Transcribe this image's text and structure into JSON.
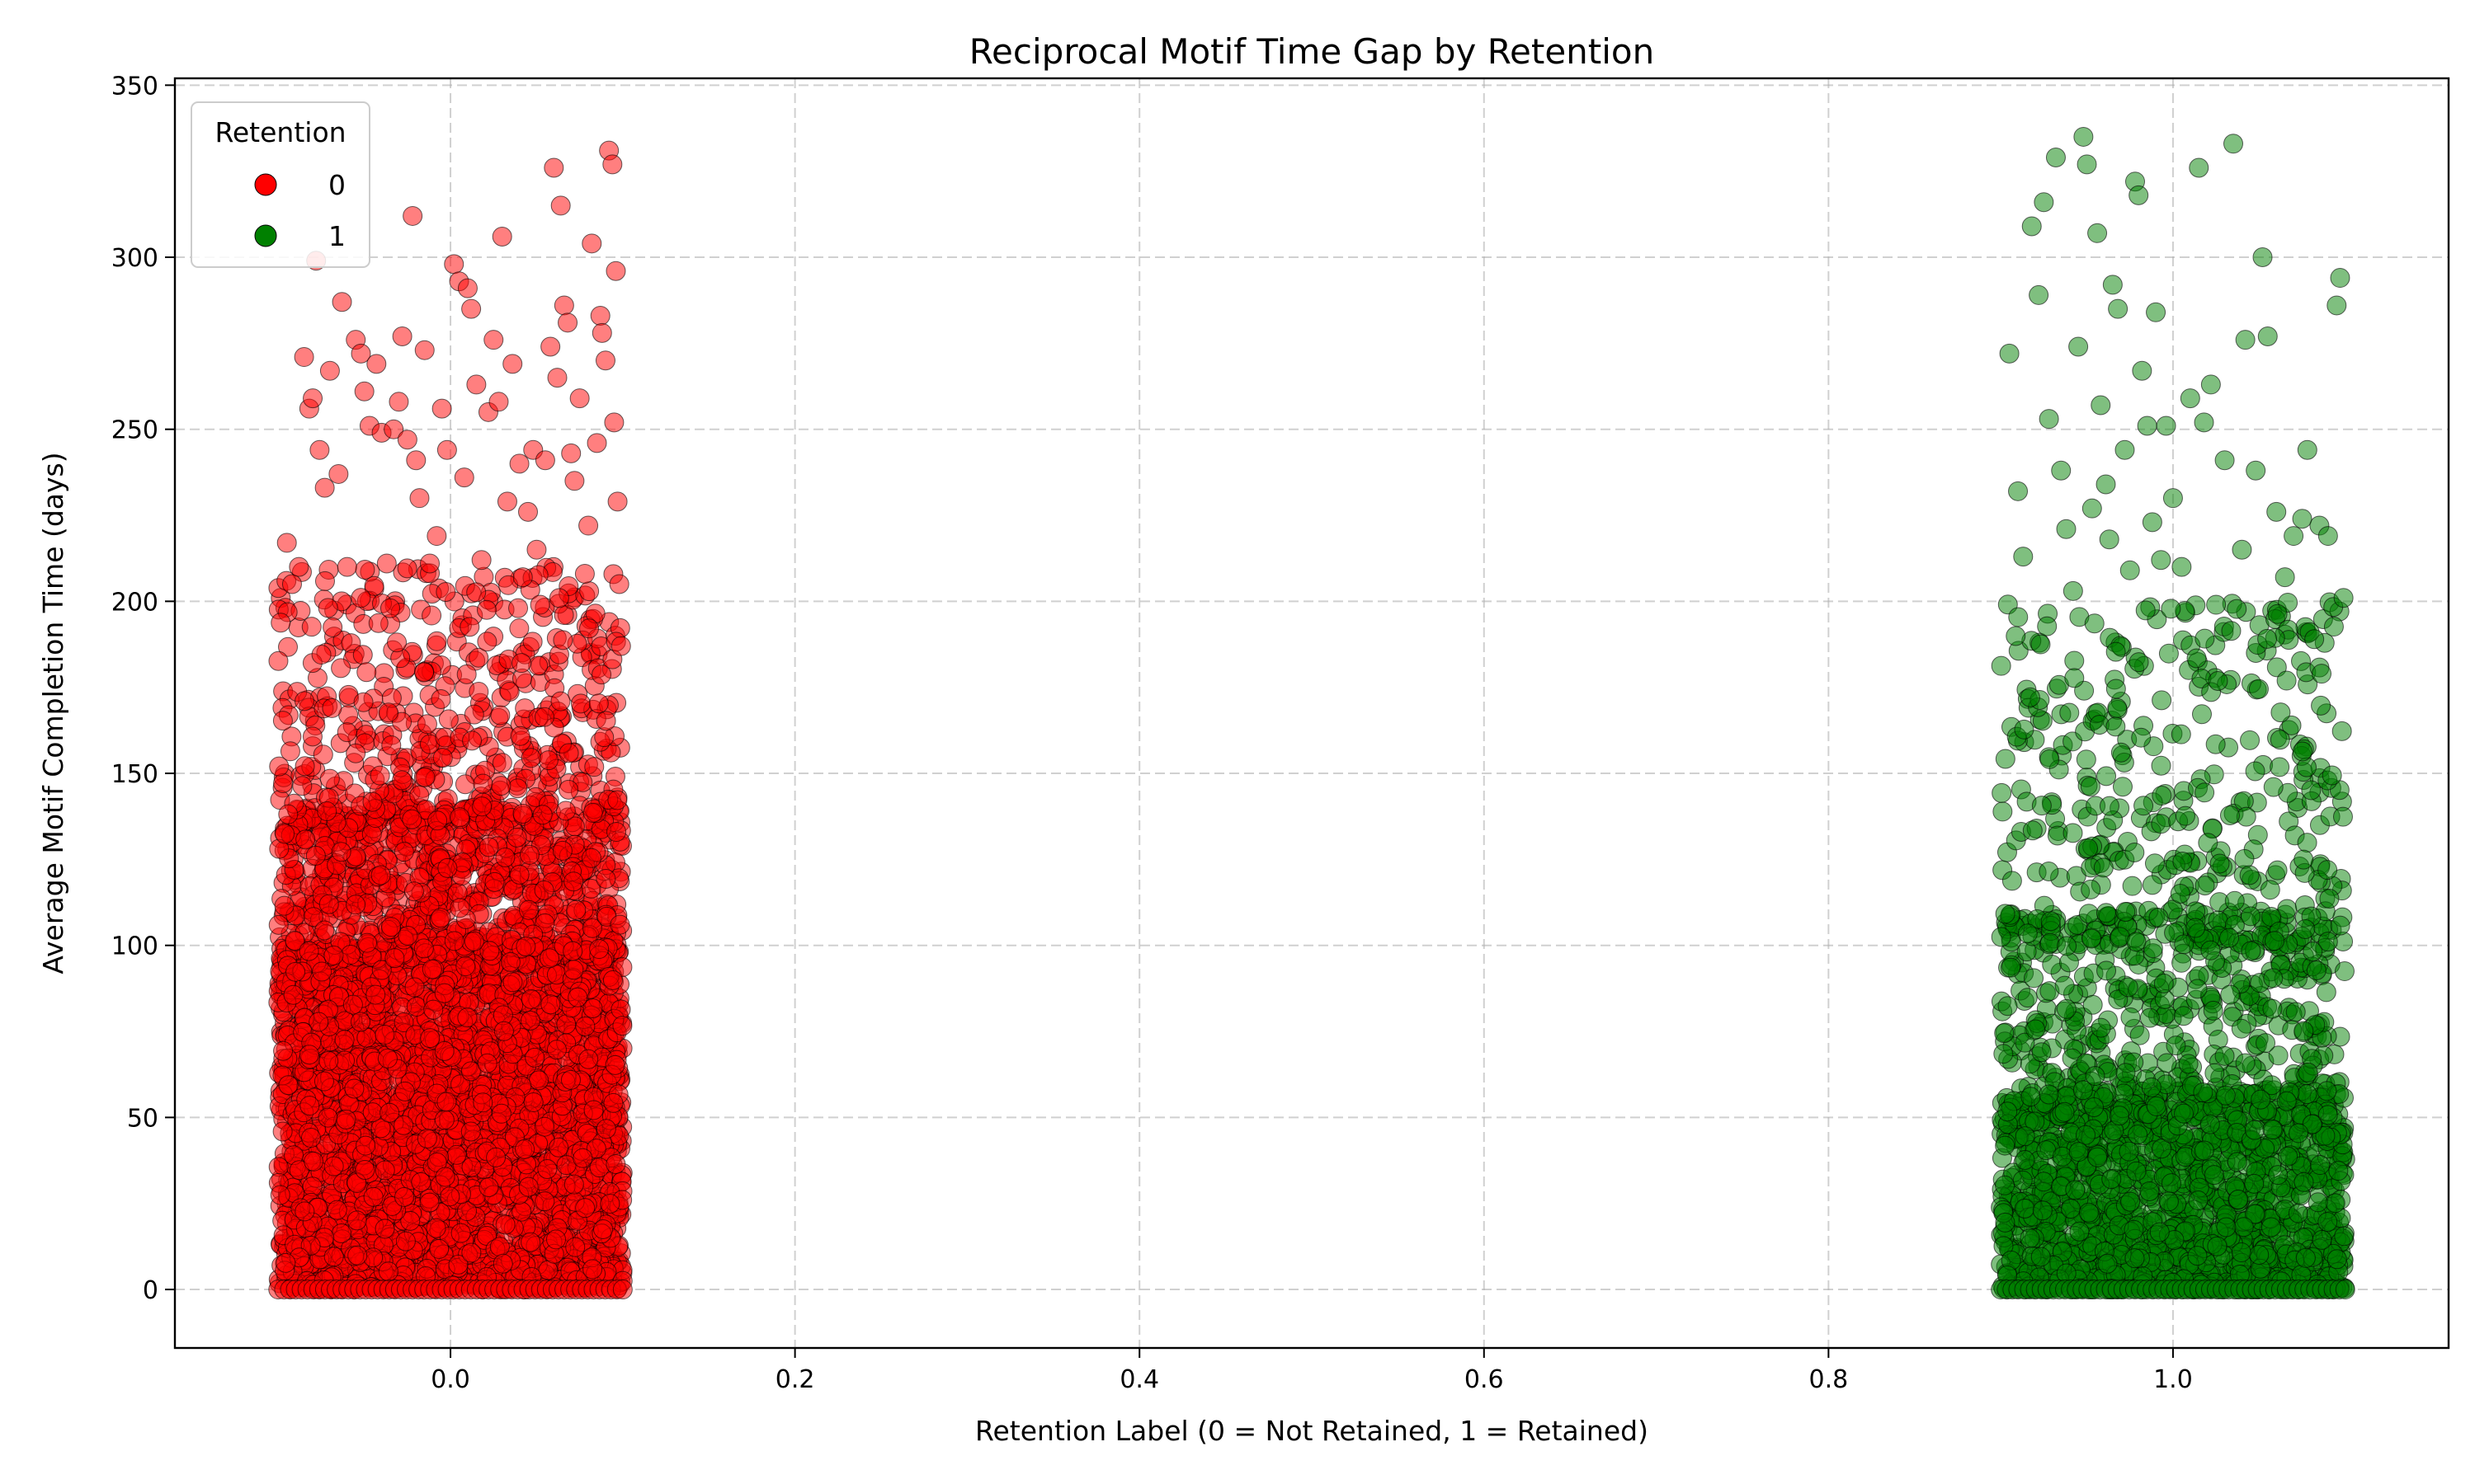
{
  "chart_data": {
    "type": "scatter",
    "title": "Reciprocal Motif Time Gap by Retention",
    "xlabel": "Retention Label (0 = Not Retained, 1 = Retained)",
    "ylabel": "Average Motif Completion Time (days)",
    "xlim": [
      -0.16,
      1.16
    ],
    "ylim": [
      -17,
      352
    ],
    "xticks": [
      0.0,
      0.2,
      0.4,
      0.6,
      0.8,
      1.0
    ],
    "xtick_labels": [
      "0.0",
      "0.2",
      "0.4",
      "0.6",
      "0.8",
      "1.0"
    ],
    "yticks": [
      0,
      50,
      100,
      150,
      200,
      250,
      300,
      350
    ],
    "ytick_labels": [
      "0",
      "50",
      "100",
      "150",
      "200",
      "250",
      "300",
      "350"
    ],
    "grid": true,
    "jitter": 0.1,
    "legend": {
      "title": "Retention",
      "placement": "top-left"
    },
    "series": [
      {
        "name": "0",
        "label_value": 0,
        "color": "#ff0000",
        "points": [
          [
            -0.095,
            217
          ],
          [
            -0.092,
            205
          ],
          [
            -0.088,
            210
          ],
          [
            -0.085,
            271
          ],
          [
            -0.082,
            256
          ],
          [
            -0.08,
            259
          ],
          [
            -0.078,
            299
          ],
          [
            -0.076,
            244
          ],
          [
            -0.073,
            233
          ],
          [
            -0.07,
            267
          ],
          [
            -0.065,
            237
          ],
          [
            -0.063,
            287
          ],
          [
            -0.06,
            210
          ],
          [
            -0.055,
            276
          ],
          [
            -0.052,
            272
          ],
          [
            -0.05,
            261
          ],
          [
            -0.047,
            251
          ],
          [
            -0.043,
            269
          ],
          [
            -0.04,
            249
          ],
          [
            -0.037,
            211
          ],
          [
            -0.035,
            198
          ],
          [
            -0.033,
            250
          ],
          [
            -0.03,
            258
          ],
          [
            -0.028,
            277
          ],
          [
            -0.025,
            247
          ],
          [
            -0.022,
            312
          ],
          [
            -0.02,
            241
          ],
          [
            -0.018,
            230
          ],
          [
            -0.015,
            273
          ],
          [
            -0.012,
            211
          ],
          [
            -0.008,
            219
          ],
          [
            -0.005,
            256
          ],
          [
            -0.002,
            244
          ],
          [
            0.002,
            298
          ],
          [
            0.005,
            293
          ],
          [
            0.008,
            236
          ],
          [
            0.01,
            291
          ],
          [
            0.012,
            285
          ],
          [
            0.015,
            263
          ],
          [
            0.018,
            212
          ],
          [
            0.022,
            255
          ],
          [
            0.025,
            276
          ],
          [
            0.028,
            258
          ],
          [
            0.03,
            306
          ],
          [
            0.033,
            229
          ],
          [
            0.036,
            269
          ],
          [
            0.04,
            240
          ],
          [
            0.042,
            207
          ],
          [
            0.045,
            226
          ],
          [
            0.048,
            244
          ],
          [
            0.05,
            215
          ],
          [
            0.052,
            199
          ],
          [
            0.055,
            241
          ],
          [
            0.058,
            274
          ],
          [
            0.06,
            326
          ],
          [
            0.062,
            265
          ],
          [
            0.064,
            315
          ],
          [
            0.066,
            286
          ],
          [
            0.068,
            281
          ],
          [
            0.07,
            243
          ],
          [
            0.072,
            235
          ],
          [
            0.075,
            259
          ],
          [
            0.078,
            208
          ],
          [
            0.08,
            222
          ],
          [
            0.082,
            304
          ],
          [
            0.085,
            246
          ],
          [
            0.087,
            283
          ],
          [
            0.088,
            278
          ],
          [
            0.09,
            270
          ],
          [
            0.092,
            331
          ],
          [
            0.094,
            327
          ],
          [
            0.095,
            252
          ],
          [
            0.096,
            296
          ],
          [
            0.097,
            229
          ],
          [
            0.098,
            205
          ],
          [
            0.099,
            187
          ]
        ]
      },
      {
        "name": "1",
        "label_value": 1,
        "color": "#008000",
        "points": [
          [
            0.905,
            272
          ],
          [
            0.91,
            232
          ],
          [
            0.913,
            213
          ],
          [
            0.918,
            309
          ],
          [
            0.922,
            289
          ],
          [
            0.925,
            316
          ],
          [
            0.928,
            253
          ],
          [
            0.932,
            329
          ],
          [
            0.935,
            238
          ],
          [
            0.938,
            221
          ],
          [
            0.942,
            203
          ],
          [
            0.945,
            274
          ],
          [
            0.948,
            335
          ],
          [
            0.95,
            327
          ],
          [
            0.953,
            227
          ],
          [
            0.956,
            307
          ],
          [
            0.958,
            257
          ],
          [
            0.961,
            234
          ],
          [
            0.963,
            218
          ],
          [
            0.965,
            292
          ],
          [
            0.968,
            285
          ],
          [
            0.972,
            244
          ],
          [
            0.975,
            209
          ],
          [
            0.978,
            322
          ],
          [
            0.98,
            318
          ],
          [
            0.982,
            267
          ],
          [
            0.985,
            251
          ],
          [
            0.988,
            223
          ],
          [
            0.99,
            284
          ],
          [
            0.993,
            212
          ],
          [
            0.996,
            251
          ],
          [
            1.0,
            230
          ],
          [
            1.005,
            210
          ],
          [
            1.01,
            259
          ],
          [
            1.015,
            326
          ],
          [
            1.018,
            252
          ],
          [
            1.022,
            263
          ],
          [
            1.025,
            199
          ],
          [
            1.03,
            241
          ],
          [
            1.035,
            333
          ],
          [
            1.04,
            215
          ],
          [
            1.042,
            276
          ],
          [
            1.048,
            238
          ],
          [
            1.052,
            300
          ],
          [
            1.055,
            277
          ],
          [
            1.06,
            226
          ],
          [
            1.065,
            207
          ],
          [
            1.07,
            219
          ],
          [
            1.075,
            224
          ],
          [
            1.078,
            244
          ],
          [
            1.082,
            189
          ],
          [
            1.085,
            222
          ],
          [
            1.09,
            219
          ],
          [
            1.095,
            286
          ],
          [
            1.097,
            294
          ],
          [
            1.099,
            201
          ]
        ]
      }
    ]
  }
}
